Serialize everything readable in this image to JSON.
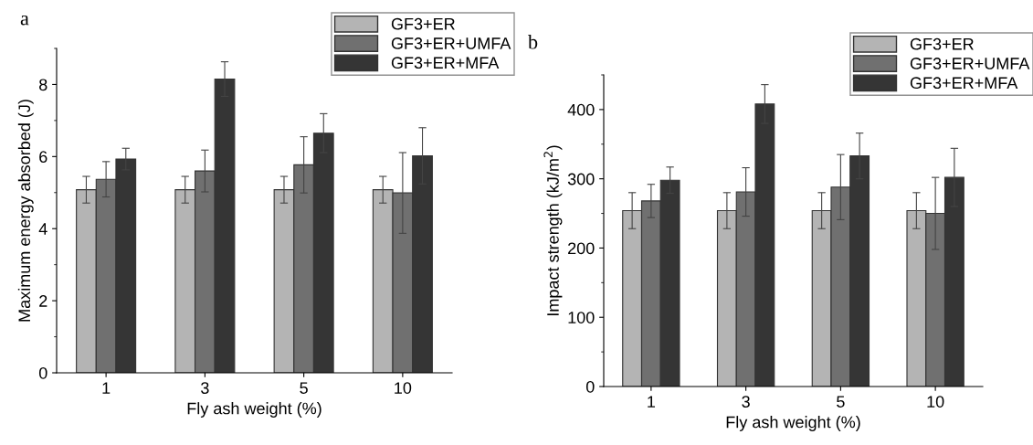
{
  "chart_data": [
    {
      "type": "bar",
      "title": "a",
      "xlabel": "Fly ash weight (%)",
      "ylabel": "Maximum energy absorbed (J)",
      "categories": [
        "1",
        "3",
        "5",
        "10"
      ],
      "series": [
        {
          "name": "GF3+ER",
          "color": "#b4b4b4",
          "values": [
            5.08,
            5.08,
            5.08,
            5.08
          ],
          "errors": [
            0.37,
            0.37,
            0.37,
            0.37
          ]
        },
        {
          "name": "GF3+ER+UMFA",
          "color": "#707070",
          "values": [
            5.37,
            5.6,
            5.77,
            4.99
          ],
          "errors": [
            0.49,
            0.58,
            0.78,
            1.12
          ]
        },
        {
          "name": "GF3+ER+MFA",
          "color": "#353535",
          "values": [
            5.93,
            8.15,
            6.65,
            6.02
          ],
          "errors": [
            0.3,
            0.48,
            0.54,
            0.78
          ]
        }
      ],
      "ylim": [
        0,
        9
      ],
      "yticks": [
        0,
        2,
        4,
        6,
        8
      ],
      "grid": false,
      "legend": "top right"
    },
    {
      "type": "bar",
      "title": "b",
      "xlabel": "Fly ash weight (%)",
      "ylabel": "Impact strength (kJ/m$^{2}$)",
      "categories": [
        "1",
        "3",
        "5",
        "10"
      ],
      "series": [
        {
          "name": "GF3+ER",
          "color": "#b4b4b4",
          "values": [
            254,
            254,
            254,
            254
          ],
          "errors": [
            26,
            26,
            26,
            26
          ]
        },
        {
          "name": "GF3+ER+UMFA",
          "color": "#707070",
          "values": [
            268,
            281,
            288,
            250
          ],
          "errors": [
            24,
            35,
            47,
            52
          ]
        },
        {
          "name": "GF3+ER+MFA",
          "color": "#353535",
          "values": [
            298,
            408,
            333,
            302
          ],
          "errors": [
            19,
            28,
            33,
            42
          ]
        }
      ],
      "ylim": [
        0,
        450
      ],
      "yticks": [
        0,
        100,
        200,
        300,
        400
      ],
      "grid": false,
      "legend": "top right"
    }
  ]
}
